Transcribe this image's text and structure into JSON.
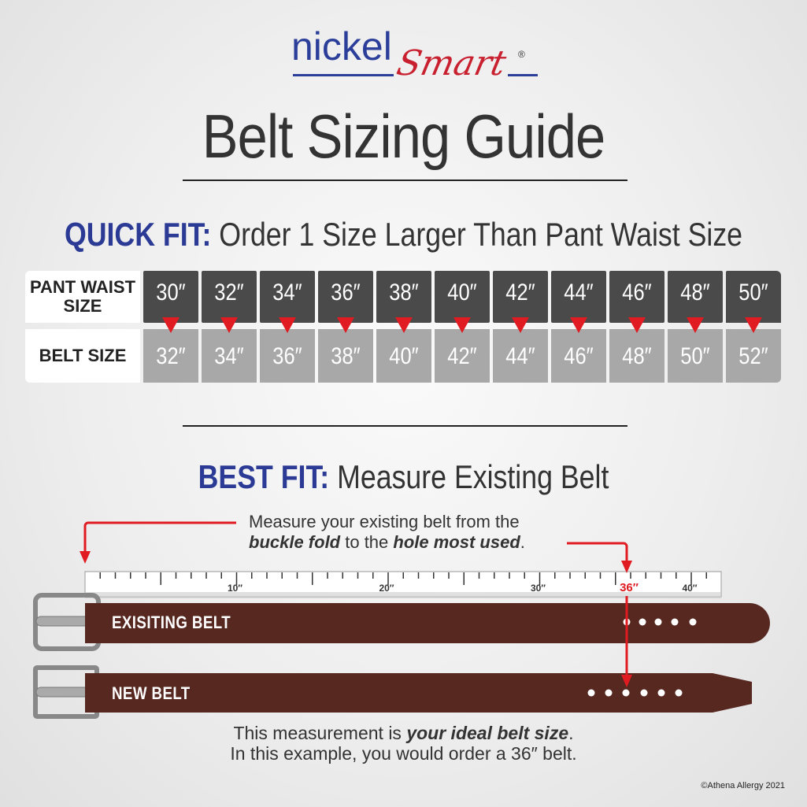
{
  "logo": {
    "nickel": "nickel",
    "smart": "Smart",
    "reg": "®"
  },
  "title": "Belt Sizing Guide",
  "quick_fit": {
    "label": "QUICK FIT:",
    "text": "Order 1 Size Larger Than Pant Waist Size"
  },
  "table": {
    "row1_label": "PANT WAIST SIZE",
    "row2_label": "BELT SIZE",
    "pant_sizes": [
      "30″",
      "32″",
      "34″",
      "36″",
      "38″",
      "40″",
      "42″",
      "44″",
      "46″",
      "48″",
      "50″"
    ],
    "belt_sizes": [
      "32″",
      "34″",
      "36″",
      "38″",
      "40″",
      "42″",
      "44″",
      "46″",
      "48″",
      "50″",
      "52″"
    ]
  },
  "best_fit": {
    "label": "BEST FIT:",
    "text": "Measure Existing Belt"
  },
  "instruction": {
    "line1": "Measure your existing belt from the",
    "bold1": "buckle fold",
    "mid": " to the ",
    "bold2": "hole most used",
    "end": "."
  },
  "ruler": {
    "labels": [
      "10″",
      "20″",
      "30″",
      "36″",
      "40″"
    ],
    "highlight": "36″"
  },
  "belts": {
    "existing": "EXISITING BELT",
    "new": "NEW BELT"
  },
  "footer": {
    "pre": "This measurement is ",
    "bold": "your ideal belt size",
    "post": ".",
    "line2": "In this example, you would order a 36″ belt."
  },
  "copyright": "©Athena Allergy 2021",
  "colors": {
    "brand_blue": "#2b3a95",
    "brand_red": "#c8202f",
    "belt": "#562820",
    "arrow": "#e01b22"
  }
}
